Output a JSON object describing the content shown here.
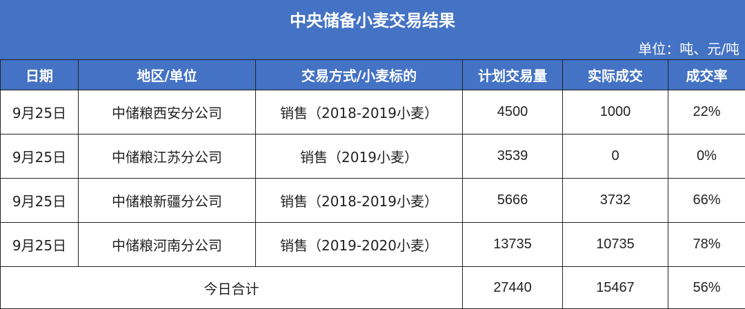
{
  "title": "中央储备小麦交易结果",
  "unit": "单位：吨、元/吨",
  "colors": {
    "header_bg": "#4472C4"
  },
  "headers": [
    "日期",
    "地区/单位",
    "交易方式/小麦标的",
    "计划交易量",
    "实际成交",
    "成交率"
  ],
  "rows": [
    {
      "date": "9月25日",
      "unit": "中储粮西安分公司",
      "method": "销售（2018-2019小麦）",
      "planned": "4500",
      "actual": "1000",
      "rate": "22%"
    },
    {
      "date": "9月25日",
      "unit": "中储粮江苏分公司",
      "method": "销售（2019小麦）",
      "planned": "3539",
      "actual": "0",
      "rate": "0%"
    },
    {
      "date": "9月25日",
      "unit": "中储粮新疆分公司",
      "method": "销售（2018-2019小麦）",
      "planned": "5666",
      "actual": "3732",
      "rate": "66%"
    },
    {
      "date": "9月25日",
      "unit": "中储粮河南分公司",
      "method": "销售（2019-2020小麦）",
      "planned": "13735",
      "actual": "10735",
      "rate": "78%"
    }
  ],
  "total": {
    "label": "今日合计",
    "planned": "27440",
    "actual": "15467",
    "rate": "56%"
  }
}
